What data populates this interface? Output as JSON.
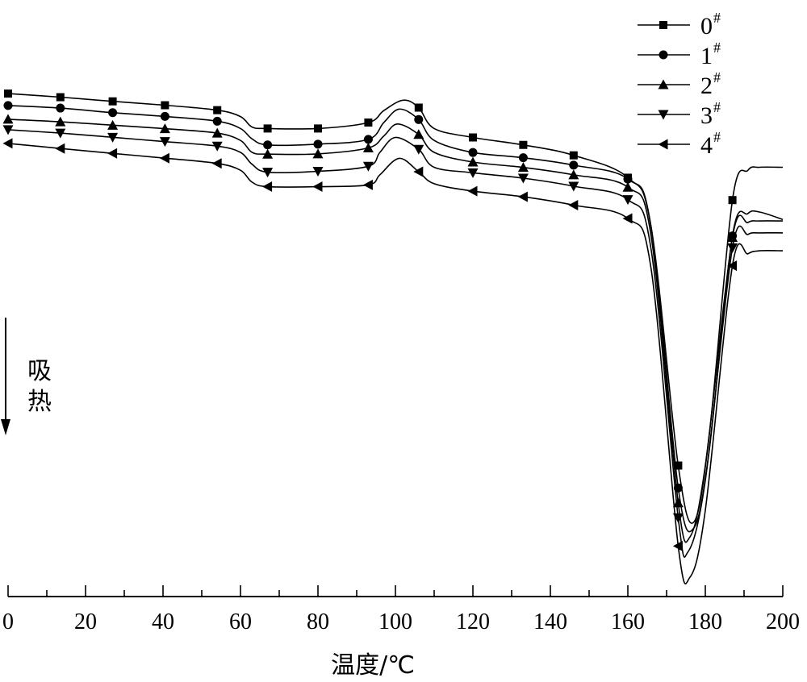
{
  "chart_data": {
    "type": "line",
    "title": "",
    "xlabel": "温度/℃",
    "ylabel": "",
    "xlim": [
      0,
      200
    ],
    "x_ticks": [
      0,
      20,
      40,
      60,
      80,
      100,
      120,
      140,
      160,
      180,
      200
    ],
    "y_ticks": [],
    "annotation": {
      "text_line1": "吸",
      "text_line2": "热"
    },
    "legend_position": "top-right",
    "series": [
      {
        "name": "0",
        "sup": "#",
        "marker": "square",
        "x": [
          0,
          13.5,
          27,
          40.5,
          54,
          60,
          63,
          67,
          80,
          93,
          97,
          102,
          106,
          110,
          120,
          133,
          146,
          160,
          166,
          173,
          177,
          181,
          187,
          191,
          194,
          200
        ],
        "values": [
          -0.6,
          -3,
          -5.8,
          -8.4,
          -11.7,
          -16,
          -23,
          -24,
          -24,
          -20,
          -12,
          -5,
          -10,
          -24,
          -30,
          -35,
          -42,
          -57,
          -90,
          -250,
          -288,
          -230,
          -72,
          -52,
          -50,
          -50
        ]
      },
      {
        "name": "1",
        "sup": "#",
        "marker": "circle",
        "x": [
          0,
          13.5,
          27,
          40.5,
          54,
          60,
          63,
          67,
          80,
          93,
          97,
          101,
          106,
          110,
          120,
          133,
          146,
          160,
          166,
          173,
          177,
          181,
          187,
          191,
          194,
          200
        ],
        "values": [
          -8.6,
          -10.3,
          -13.4,
          -15.9,
          -19.1,
          -24,
          -31,
          -35,
          -34.5,
          -31.3,
          -20,
          -11,
          -18,
          -32,
          -40.1,
          -43.6,
          -48.6,
          -57.9,
          -90,
          -265,
          -292,
          -240,
          -96,
          -81,
          -80,
          -85
        ]
      },
      {
        "name": "2",
        "sup": "#",
        "marker": "triangle-up",
        "x": [
          0,
          13.5,
          27,
          40.5,
          54,
          60,
          63,
          67,
          80,
          93,
          97,
          100.5,
          106,
          110,
          120,
          133,
          146,
          160,
          166,
          173,
          176,
          180,
          187,
          191,
          194,
          200
        ],
        "values": [
          -17.8,
          -19.5,
          -21.8,
          -24.1,
          -27.1,
          -32,
          -40,
          -41.2,
          -41,
          -37,
          -29,
          -21,
          -28,
          -40,
          -46.5,
          -50.1,
          -55.1,
          -63.4,
          -96,
          -275,
          -298,
          -250,
          -97,
          -87,
          -86,
          -86
        ]
      },
      {
        "name": "3",
        "sup": "#",
        "marker": "triangle-down",
        "x": [
          0,
          13.5,
          27,
          40.5,
          54,
          60,
          63,
          67,
          80,
          93,
          96,
          100,
          106,
          110,
          120,
          133,
          146,
          160,
          166,
          173,
          175.5,
          180,
          187,
          191,
          194,
          200
        ],
        "values": [
          -24.8,
          -27.1,
          -29.9,
          -32.8,
          -35.8,
          -40,
          -48,
          -53.3,
          -52.7,
          -49.3,
          -40,
          -30,
          -38,
          -50,
          -53.7,
          -57.3,
          -62.7,
          -71.7,
          -105,
          -285,
          -308,
          -260,
          -104,
          -95,
          -94,
          -94
        ]
      },
      {
        "name": "4",
        "sup": "#",
        "marker": "triangle-left",
        "x": [
          0,
          13.5,
          27,
          40.5,
          54,
          60,
          63,
          67,
          80,
          93,
          96,
          101,
          106,
          110,
          120,
          133,
          146,
          160,
          166,
          173,
          176,
          180,
          187,
          191,
          194,
          200
        ],
        "values": [
          -34,
          -37.4,
          -40.7,
          -43.9,
          -47.4,
          -52,
          -60,
          -63,
          -63,
          -61.8,
          -55,
          -44,
          -53,
          -61,
          -66,
          -69.8,
          -75.4,
          -84.3,
          -118,
          -304,
          -325,
          -280,
          -116,
          -108,
          -106,
          -106
        ]
      }
    ]
  }
}
